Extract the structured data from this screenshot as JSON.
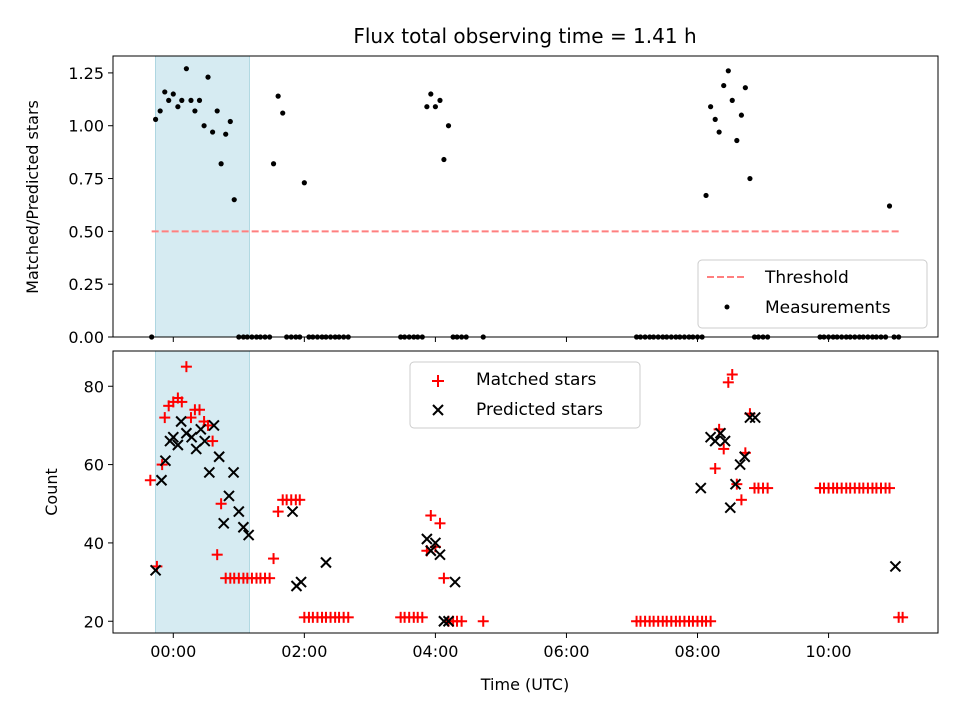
{
  "chart_data": [
    {
      "type": "scatter",
      "title": "Flux total observing time = 1.41 h",
      "xlabel": "",
      "ylabel": "Matched/Predicted stars",
      "ylim": [
        0,
        1.33
      ],
      "xlim_hours": [
        -0.92,
        11.67
      ],
      "yticks": [
        0,
        0.25,
        0.5,
        0.75,
        1.0,
        1.25
      ],
      "ytick_labels": [
        "0.00",
        "0.25",
        "0.50",
        "0.75",
        "1.00",
        "1.25"
      ],
      "shaded_interval_hours": [
        -0.27,
        1.16
      ],
      "shade_color": "#add8e6",
      "threshold": {
        "name": "Threshold",
        "value": 0.5,
        "x_hours": [
          -0.33,
          11.1
        ],
        "color": "#ff7f7f"
      },
      "legend_position": "lower right",
      "legend": [
        "Threshold",
        "Measurements"
      ],
      "series": [
        {
          "name": "Measurements",
          "color": "#000000",
          "x_hours": [
            -0.33,
            -0.27,
            -0.2,
            -0.13,
            -0.07,
            0.0,
            0.07,
            0.13,
            0.2,
            0.27,
            0.33,
            0.4,
            0.47,
            0.53,
            0.6,
            0.67,
            0.73,
            0.8,
            0.87,
            0.93,
            1.0,
            1.07,
            1.13,
            1.2,
            1.27,
            1.33,
            1.4,
            1.47,
            1.53,
            1.6,
            1.67,
            1.73,
            1.8,
            1.87,
            1.93,
            2.0,
            2.07,
            2.13,
            2.2,
            2.27,
            2.33,
            2.4,
            2.47,
            2.53,
            2.6,
            2.67,
            3.47,
            3.53,
            3.6,
            3.67,
            3.73,
            3.8,
            3.87,
            3.93,
            4.0,
            4.07,
            4.13,
            4.2,
            4.27,
            4.33,
            4.4,
            4.47,
            4.73,
            7.07,
            7.13,
            7.2,
            7.27,
            7.33,
            7.4,
            7.47,
            7.53,
            7.6,
            7.67,
            7.73,
            7.8,
            7.87,
            7.93,
            8.0,
            8.07,
            8.13,
            8.2,
            8.27,
            8.33,
            8.4,
            8.47,
            8.53,
            8.6,
            8.67,
            8.73,
            8.8,
            8.87,
            8.93,
            9.0,
            9.07,
            9.87,
            9.93,
            10.0,
            10.07,
            10.13,
            10.2,
            10.27,
            10.33,
            10.4,
            10.47,
            10.53,
            10.6,
            10.67,
            10.73,
            10.8,
            10.87,
            10.93,
            11.0,
            11.07
          ],
          "y": [
            0.0,
            1.03,
            1.07,
            1.16,
            1.12,
            1.15,
            1.09,
            1.12,
            1.27,
            1.12,
            1.07,
            1.12,
            1.0,
            1.23,
            0.97,
            1.07,
            0.82,
            0.96,
            1.02,
            0.65,
            0.0,
            0.0,
            0.0,
            0.0,
            0.0,
            0.0,
            0.0,
            0.0,
            0.82,
            1.14,
            1.06,
            0.0,
            0.0,
            0.0,
            0.0,
            0.73,
            0.0,
            0.0,
            0.0,
            0.0,
            0.0,
            0.0,
            0.0,
            0.0,
            0.0,
            0.0,
            0.0,
            0.0,
            0.0,
            0.0,
            0.0,
            0.0,
            1.09,
            1.15,
            1.09,
            1.12,
            0.84,
            1.0,
            0.0,
            0.0,
            0.0,
            0.0,
            0.0,
            0.0,
            0.0,
            0.0,
            0.0,
            0.0,
            0.0,
            0.0,
            0.0,
            0.0,
            0.0,
            0.0,
            0.0,
            0.0,
            0.0,
            0.0,
            0.0,
            0.67,
            1.09,
            1.03,
            0.97,
            1.19,
            1.26,
            1.12,
            0.93,
            1.05,
            1.18,
            0.75,
            0.0,
            0.0,
            0.0,
            0.0,
            0.0,
            0.0,
            0.0,
            0.0,
            0.0,
            0.0,
            0.0,
            0.0,
            0.0,
            0.0,
            0.0,
            0.0,
            0.0,
            0.0,
            0.0,
            0.0,
            0.62,
            0.0,
            0.0
          ]
        }
      ]
    },
    {
      "type": "scatter",
      "title": "",
      "xlabel": "Time (UTC)",
      "ylabel": "Count",
      "ylim": [
        17,
        89
      ],
      "xlim_hours": [
        -0.92,
        11.67
      ],
      "yticks": [
        20,
        40,
        60,
        80
      ],
      "ytick_labels": [
        "20",
        "40",
        "60",
        "80"
      ],
      "xticks_hours": [
        0,
        2,
        4,
        6,
        8,
        10
      ],
      "xtick_labels": [
        "00:00",
        "02:00",
        "04:00",
        "06:00",
        "08:00",
        "10:00"
      ],
      "shaded_interval_hours": [
        -0.27,
        1.16
      ],
      "shade_color": "#add8e6",
      "legend_position": "upper center",
      "legend": [
        "Matched stars",
        "Predicted stars"
      ],
      "series": [
        {
          "name": "Matched stars",
          "marker": "+",
          "color": "#ff0000",
          "x_hours": [
            -0.35,
            -0.25,
            -0.17,
            -0.13,
            -0.07,
            0.0,
            0.07,
            0.13,
            0.2,
            0.27,
            0.33,
            0.4,
            0.47,
            0.53,
            0.6,
            0.67,
            0.73,
            0.8,
            0.87,
            0.93,
            1.0,
            1.07,
            1.13,
            1.2,
            1.27,
            1.33,
            1.4,
            1.47,
            1.53,
            1.6,
            1.67,
            1.73,
            1.8,
            1.87,
            1.93,
            2.0,
            2.07,
            2.13,
            2.2,
            2.27,
            2.33,
            2.4,
            2.47,
            2.53,
            2.6,
            2.67,
            3.47,
            3.53,
            3.6,
            3.67,
            3.73,
            3.8,
            3.87,
            3.93,
            4.0,
            4.07,
            4.13,
            4.2,
            4.27,
            4.33,
            4.4,
            4.73,
            7.07,
            7.13,
            7.2,
            7.27,
            7.33,
            7.4,
            7.47,
            7.53,
            7.6,
            7.67,
            7.73,
            7.8,
            7.87,
            7.93,
            8.0,
            8.07,
            8.13,
            8.2,
            8.27,
            8.33,
            8.4,
            8.47,
            8.53,
            8.6,
            8.67,
            8.73,
            8.8,
            8.87,
            8.93,
            9.0,
            9.07,
            9.87,
            9.93,
            10.0,
            10.07,
            10.13,
            10.2,
            10.27,
            10.33,
            10.4,
            10.47,
            10.53,
            10.6,
            10.67,
            10.73,
            10.8,
            10.87,
            10.93,
            11.07,
            11.13
          ],
          "y": [
            56,
            34,
            60,
            72,
            75,
            76,
            77,
            76,
            85,
            72,
            74,
            74,
            71,
            70,
            66,
            37,
            50,
            31,
            31,
            31,
            31,
            31,
            31,
            31,
            31,
            31,
            31,
            31,
            36,
            48,
            51,
            51,
            51,
            51,
            51,
            21,
            21,
            21,
            21,
            21,
            21,
            21,
            21,
            21,
            21,
            21,
            21,
            21,
            21,
            21,
            21,
            21,
            38,
            47,
            39,
            45,
            31,
            20,
            20,
            20,
            20,
            20,
            20,
            20,
            20,
            20,
            20,
            20,
            20,
            20,
            20,
            20,
            20,
            20,
            20,
            20,
            20,
            20,
            20,
            20,
            59,
            69,
            64,
            81,
            83,
            55,
            51,
            63,
            73,
            54,
            54,
            54,
            54,
            54,
            54,
            54,
            54,
            54,
            54,
            54,
            54,
            54,
            54,
            54,
            54,
            54,
            54,
            54,
            54,
            54,
            21,
            21
          ]
        },
        {
          "name": "Predicted stars",
          "marker": "x",
          "color": "#000000",
          "x_hours": [
            -0.27,
            -0.18,
            -0.12,
            -0.05,
            0.0,
            0.07,
            0.12,
            0.2,
            0.28,
            0.35,
            0.42,
            0.48,
            0.55,
            0.62,
            0.7,
            0.77,
            0.85,
            0.92,
            1.0,
            1.07,
            1.15,
            1.82,
            1.88,
            1.95,
            2.33,
            3.87,
            3.93,
            4.0,
            4.07,
            4.13,
            4.2,
            4.3,
            8.05,
            8.2,
            8.27,
            8.35,
            8.42,
            8.5,
            8.58,
            8.65,
            8.72,
            8.8,
            8.88,
            11.02
          ],
          "y": [
            33,
            56,
            61,
            66,
            67,
            65,
            71,
            68,
            67,
            64,
            69,
            66,
            58,
            70,
            62,
            45,
            52,
            58,
            48,
            44,
            42,
            48,
            29,
            30,
            35,
            41,
            38,
            40,
            37,
            20,
            20,
            30,
            54,
            67,
            66,
            68,
            66,
            49,
            55,
            60,
            62,
            72,
            72,
            34
          ]
        }
      ]
    }
  ]
}
